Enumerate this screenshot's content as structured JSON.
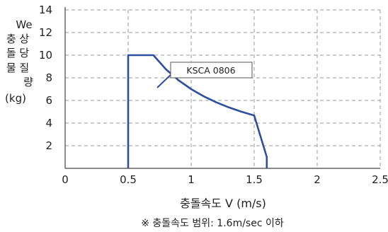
{
  "chart_data": {
    "type": "line",
    "title": "",
    "xlabel": "충돌속도 V (m/s)",
    "ylabel_lines": [
      "We",
      "충 상",
      "돌 당",
      "물 질",
      "량",
      "(kg)"
    ],
    "xlim": [
      0,
      2.5
    ],
    "ylim": [
      0,
      14
    ],
    "x_ticks": [
      0,
      0.5,
      1,
      1.5,
      2,
      2.5
    ],
    "x_tick_labels": [
      "0",
      "0.5",
      "1",
      "1.5",
      "2",
      "2.5"
    ],
    "y_ticks": [
      2,
      4,
      6,
      8,
      10,
      12,
      14
    ],
    "y_tick_labels": [
      "2",
      "4",
      "6",
      "8",
      "10",
      "12",
      "14"
    ],
    "grid": true,
    "series": [
      {
        "name": "KSCA 0806",
        "color": "#2e4e9e",
        "x": [
          0.5,
          0.5,
          0.65,
          0.7,
          0.8,
          0.9,
          1.0,
          1.1,
          1.2,
          1.3,
          1.4,
          1.5,
          1.6,
          1.6
        ],
        "y": [
          0,
          10,
          10,
          10,
          8.75,
          7.78,
          7.0,
          6.36,
          5.83,
          5.38,
          5.0,
          4.67,
          1.0,
          0
        ]
      }
    ],
    "callout": {
      "text": "KSCA 0806"
    },
    "note": "※ 충돌속도 범위: 1.6m/sec 이하"
  }
}
